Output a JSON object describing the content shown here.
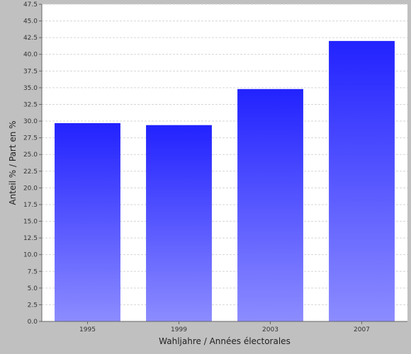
{
  "chart_data": {
    "type": "bar",
    "categories": [
      "1995",
      "1999",
      "2003",
      "2007"
    ],
    "values": [
      29.7,
      29.4,
      34.8,
      42.0
    ],
    "xlabel": "Wahljahre / Années électorales",
    "ylabel": "Anteil % / Part en %",
    "ylim": [
      0,
      47.5
    ],
    "ytick_step": 2.5,
    "grid": true,
    "legend": "none",
    "colors": {
      "background": "#c0c0c0",
      "plot_background": "#ffffff",
      "bar_top": "#2222ff",
      "bar_bottom": "#8c8cff",
      "grid": "#d6d6d6"
    }
  }
}
